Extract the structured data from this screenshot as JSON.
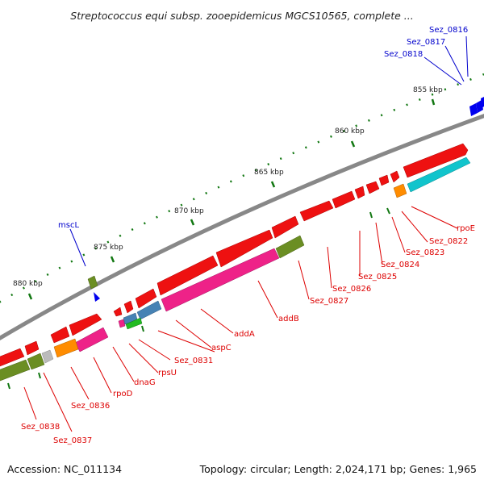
{
  "title": "Streptococcus equi subsp. zooepidemicus MGCS10565, complete ...",
  "footer": {
    "accession": "Accession: NC_011134",
    "summary": "Topology: circular; Length: 2,024,171 bp; Genes: 1,965"
  },
  "colors": {
    "red": "#ee1111",
    "pink": "#ee2288",
    "olive": "#6b8e23",
    "cyan": "#11c4cc",
    "orange": "#ff8c00",
    "steel": "#4682b4",
    "green": "#22bb22",
    "gray": "#bbbbbb",
    "blue": "#0000ee",
    "label_red": "#dd0000",
    "label_blue": "#0000cc",
    "tick_green": "#117711",
    "backbone": "#888888"
  },
  "scale_labels": [
    {
      "text": "855 kbp"
    },
    {
      "text": "860 kbp"
    },
    {
      "text": "865 kbp"
    },
    {
      "text": "870 kbp"
    },
    {
      "text": "875 kbp"
    },
    {
      "text": "880 kbp"
    }
  ],
  "gene_labels": {
    "red": [
      "rpoE",
      "Sez_0822",
      "Sez_0823",
      "Sez_0824",
      "Sez_0825",
      "Sez_0826",
      "Sez_0827",
      "addB",
      "addA",
      "aspC",
      "Sez_0831",
      "rpsU",
      "dnaG",
      "rpoD",
      "Sez_0836",
      "Sez_0837",
      "Sez_0838"
    ],
    "blue": [
      "Sez_0816",
      "Sez_0817",
      "Sez_0818",
      "mscL"
    ]
  }
}
